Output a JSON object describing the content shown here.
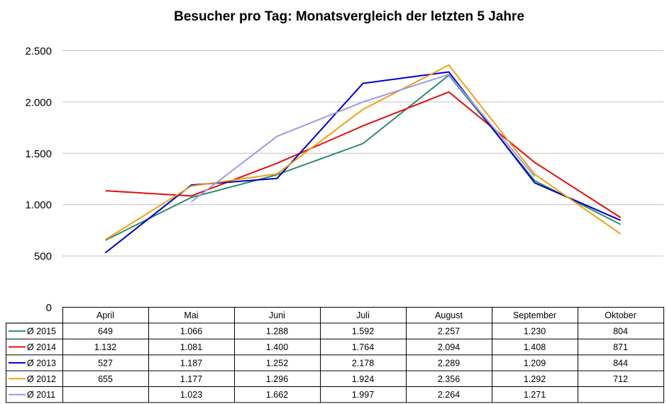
{
  "chart_data": {
    "type": "line",
    "title": "Besucher pro Tag: Monatsvergleich der letzten 5 Jahre",
    "categories": [
      "April",
      "Mai",
      "Juni",
      "Juli",
      "August",
      "September",
      "Oktober"
    ],
    "ylim": [
      0,
      2500
    ],
    "yticks": [
      0,
      500,
      1000,
      1500,
      2000,
      2500
    ],
    "ytick_labels": [
      "0",
      "500",
      "1.000",
      "1.500",
      "2.000",
      "2.500"
    ],
    "grid": true,
    "legend": "data-table-left",
    "series": [
      {
        "name": "Ø 2015",
        "color": "#2e8b6e",
        "values": [
          649,
          1066,
          1288,
          1592,
          2257,
          1230,
          804
        ],
        "labels": [
          "649",
          "1.066",
          "1.288",
          "1.592",
          "2.257",
          "1.230",
          "804"
        ]
      },
      {
        "name": "Ø 2014",
        "color": "#e01010",
        "values": [
          1132,
          1081,
          1400,
          1764,
          2094,
          1408,
          871
        ],
        "labels": [
          "1.132",
          "1.081",
          "1.400",
          "1.764",
          "2.094",
          "1.408",
          "871"
        ]
      },
      {
        "name": "Ø 2013",
        "color": "#0000c8",
        "values": [
          527,
          1187,
          1252,
          2178,
          2289,
          1209,
          844
        ],
        "labels": [
          "527",
          "1.187",
          "1.252",
          "2.178",
          "2.289",
          "1.209",
          "844"
        ]
      },
      {
        "name": "Ø 2012",
        "color": "#f0a010",
        "values": [
          655,
          1177,
          1296,
          1924,
          2356,
          1292,
          712
        ],
        "labels": [
          "655",
          "1.177",
          "1.296",
          "1.924",
          "2.356",
          "1.292",
          "712"
        ]
      },
      {
        "name": "Ø 2011",
        "color": "#9a9ae8",
        "values": [
          null,
          1023,
          1662,
          1997,
          2264,
          1271,
          null
        ],
        "labels": [
          "",
          "1.023",
          "1.662",
          "1.997",
          "2.264",
          "1.271",
          ""
        ]
      }
    ]
  }
}
